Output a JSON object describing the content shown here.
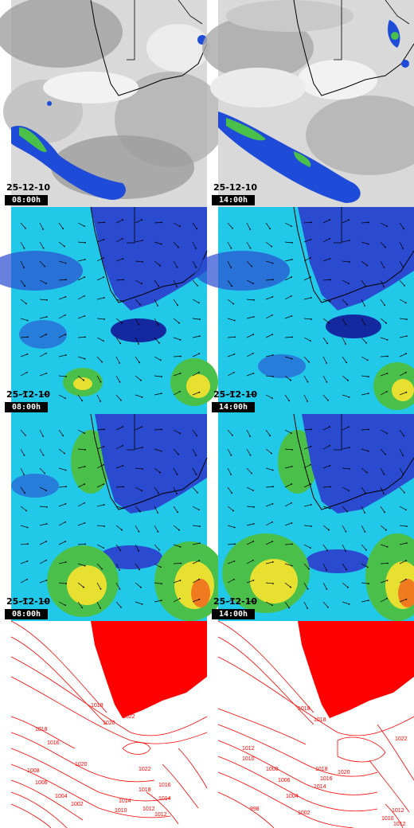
{
  "rows": [
    {
      "name": "satellite",
      "left": {
        "date": "25-12-10",
        "time": "08:00h"
      },
      "right": {
        "date": "25-12-10",
        "time": "14:00h"
      }
    },
    {
      "name": "wind-850",
      "left": {
        "date": "25-12-10",
        "time": "08:00h"
      },
      "right": {
        "date": "25-12-10",
        "time": "14:00h"
      }
    },
    {
      "name": "wind-500",
      "left": {
        "date": "25-12-10",
        "time": "08:00h"
      },
      "right": {
        "date": "25-12-10",
        "time": "14:00h"
      }
    },
    {
      "name": "pressure",
      "left": {
        "isobars": [
          "1018",
          "1020",
          "1022",
          "1016",
          "1018",
          "1014",
          "1012",
          "1010",
          "1008",
          "1006",
          "1004",
          "1002",
          "1020",
          "1022",
          "1018",
          "1016",
          "1014",
          "1012"
        ]
      },
      "right": {
        "isobars": [
          "1018",
          "1018",
          "1022",
          "1012",
          "1010",
          "1008",
          "1006",
          "1004",
          "1002",
          "998",
          "1020",
          "1018",
          "1016",
          "1014",
          "1012",
          "1010",
          "1012"
        ]
      }
    }
  ],
  "colors": {
    "cloud_gray": "#b8b8b8",
    "precip_blue": "#1e4bd8",
    "precip_green": "#4ac04a",
    "wind_low": "#2a4bd0",
    "wind_mid": "#22c8e8",
    "wind_high": "#e8e030",
    "wind_max": "#f07a20",
    "isobar": "#ff0000",
    "land_fill": "#ff0000"
  }
}
